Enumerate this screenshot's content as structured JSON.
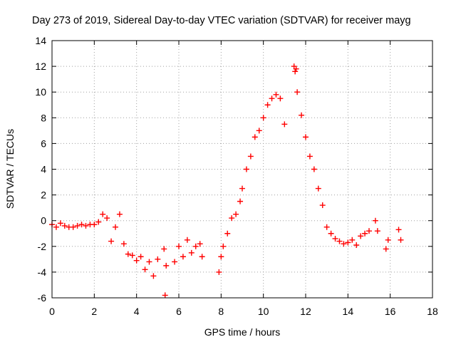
{
  "chart_data": {
    "type": "scatter",
    "title": "Day 273 of 2019, Sidereal Day-to-day VTEC variation (SDTVAR) for receiver mayg",
    "xlabel": "GPS time / hours",
    "ylabel": "SDTVAR / TECUs",
    "xlim": [
      0,
      18
    ],
    "ylim": [
      -6,
      14
    ],
    "xticks": [
      "0",
      "2",
      "4",
      "6",
      "8",
      "10",
      "12",
      "14",
      "16",
      "18"
    ],
    "yticks": [
      "-6",
      "-4",
      "-2",
      "0",
      "2",
      "4",
      "6",
      "8",
      "10",
      "12",
      "14"
    ],
    "grid": true,
    "marker": "+",
    "color": "#ff0000",
    "series": [
      {
        "name": "SDTVAR",
        "x": [
          0.0,
          0.2,
          0.4,
          0.6,
          0.8,
          1.0,
          1.2,
          1.4,
          1.6,
          1.8,
          2.0,
          2.2,
          2.4,
          2.6,
          2.8,
          3.0,
          3.2,
          3.4,
          3.6,
          3.8,
          4.0,
          4.2,
          4.4,
          4.6,
          4.8,
          5.0,
          5.3,
          5.35,
          5.4,
          5.8,
          6.0,
          6.2,
          6.4,
          6.6,
          6.8,
          7.0,
          7.1,
          7.9,
          8.0,
          8.1,
          8.3,
          8.5,
          8.7,
          8.9,
          9.0,
          9.2,
          9.4,
          9.6,
          9.8,
          10.0,
          10.2,
          10.4,
          10.6,
          10.8,
          11.0,
          11.45,
          11.5,
          11.55,
          11.6,
          11.8,
          12.0,
          12.2,
          12.4,
          12.6,
          12.8,
          13.0,
          13.2,
          13.4,
          13.6,
          13.8,
          14.0,
          14.2,
          14.4,
          14.6,
          14.8,
          15.0,
          15.3,
          15.4,
          15.8,
          15.9,
          16.4,
          16.5
        ],
        "y": [
          -0.3,
          -0.5,
          -0.2,
          -0.4,
          -0.5,
          -0.5,
          -0.4,
          -0.3,
          -0.4,
          -0.3,
          -0.3,
          -0.1,
          0.5,
          0.2,
          -1.6,
          -0.5,
          0.5,
          -1.8,
          -2.6,
          -2.7,
          -3.1,
          -2.8,
          -3.8,
          -3.2,
          -4.3,
          -3.0,
          -2.2,
          -5.8,
          -3.5,
          -3.2,
          -2.0,
          -2.8,
          -1.5,
          -2.5,
          -2.0,
          -1.8,
          -2.8,
          -4.0,
          -2.8,
          -2.0,
          -1.0,
          0.2,
          0.5,
          1.5,
          2.5,
          4.0,
          5.0,
          6.5,
          7.0,
          8.0,
          9.0,
          9.5,
          9.8,
          9.5,
          7.5,
          12.0,
          11.6,
          11.8,
          10.0,
          8.2,
          6.5,
          5.0,
          4.0,
          2.5,
          1.2,
          -0.5,
          -1.0,
          -1.4,
          -1.6,
          -1.8,
          -1.7,
          -1.5,
          -1.9,
          -1.2,
          -1.0,
          -0.8,
          0.0,
          -0.8,
          -2.2,
          -1.5,
          -0.7,
          -1.5
        ]
      }
    ]
  }
}
